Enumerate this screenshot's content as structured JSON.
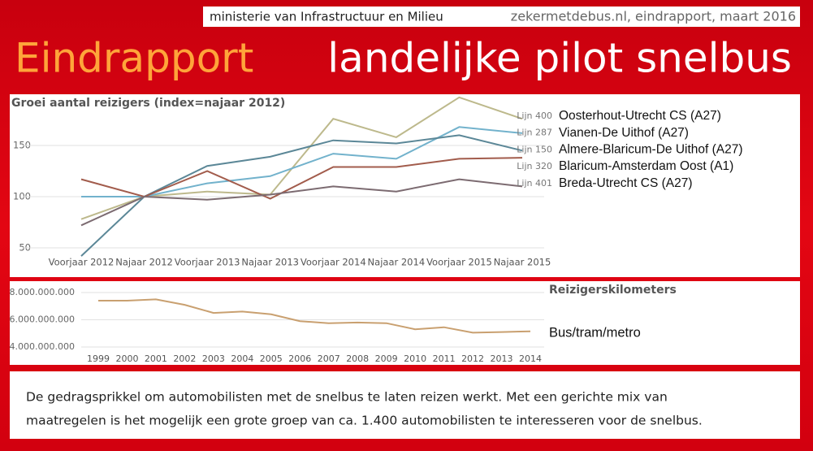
{
  "header": {
    "ministry": "ministerie van Infrastructuur en Milieu",
    "source": "zekermetdebus.nl, eindrapport, maart 2016",
    "title_highlight": "Eindrapport",
    "title_rest": "landelijke pilot snelbus"
  },
  "chart_data": [
    {
      "type": "line",
      "title": "Groei aantal reizigers (index=najaar 2012)",
      "categories": [
        "Voorjaar 2012",
        "Najaar 2012",
        "Voorjaar 2013",
        "Najaar 2013",
        "Voorjaar 2014",
        "Najaar 2014",
        "Voorjaar 2015",
        "Najaar 2015"
      ],
      "series": [
        {
          "name": "Lijn 400",
          "route": "Oosterhout-Utrecht CS (A27)",
          "color": "#bdb98c",
          "values": [
            78,
            100,
            105,
            102,
            176,
            158,
            197,
            176
          ]
        },
        {
          "name": "Lijn 287",
          "route": "Vianen-De Uithof (A27)",
          "color": "#72b2cc",
          "values": [
            100,
            100,
            113,
            120,
            142,
            137,
            168,
            162
          ]
        },
        {
          "name": "Lijn 150",
          "route": "Almere-Blaricum-De Uithof (A27)",
          "color": "#5b8797",
          "values": [
            42,
            100,
            130,
            139,
            155,
            152,
            160,
            145
          ]
        },
        {
          "name": "Lijn 320",
          "route": "Blaricum-Amsterdam Oost (A1)",
          "color": "#a25c4c",
          "values": [
            117,
            100,
            125,
            98,
            129,
            129,
            137,
            138
          ]
        },
        {
          "name": "Lijn 401",
          "route": "Breda-Utrecht CS (A27)",
          "color": "#7c6b71",
          "values": [
            72,
            100,
            97,
            102,
            110,
            105,
            117,
            110
          ]
        }
      ],
      "ylim": [
        40,
        200
      ],
      "yticks": [
        50,
        100,
        150
      ],
      "grid": true
    },
    {
      "type": "line",
      "title": "Reizigerskilometers",
      "categories": [
        "1999",
        "2000",
        "2001",
        "2002",
        "2003",
        "2004",
        "2005",
        "2006",
        "2007",
        "2008",
        "2009",
        "2010",
        "2011",
        "2012",
        "2013",
        "2014"
      ],
      "series": [
        {
          "name": "Bus/tram/metro",
          "color": "#c9a070",
          "values": [
            7400000000,
            7400000000,
            7500000000,
            7100000000,
            6500000000,
            6600000000,
            6400000000,
            5900000000,
            5750000000,
            5800000000,
            5750000000,
            5300000000,
            5450000000,
            5050000000,
            5100000000,
            5150000000
          ]
        }
      ],
      "ylim": [
        3500000000,
        8500000000
      ],
      "yticks": [
        {
          "value": 4000000000,
          "label": "4.000.000.000"
        },
        {
          "value": 6000000000,
          "label": "6.000.000.000"
        },
        {
          "value": 8000000000,
          "label": "8.000.000.000"
        }
      ],
      "grid": true
    }
  ],
  "footer": {
    "lines": [
      "De gedragsprikkel om automobilisten met de snelbus te laten reizen werkt. Met een gerichte mix van",
      "maatregelen is het  mogelijk een grote groep van  ca. 1.400 automobilisten te interesseren voor de snelbus."
    ]
  }
}
